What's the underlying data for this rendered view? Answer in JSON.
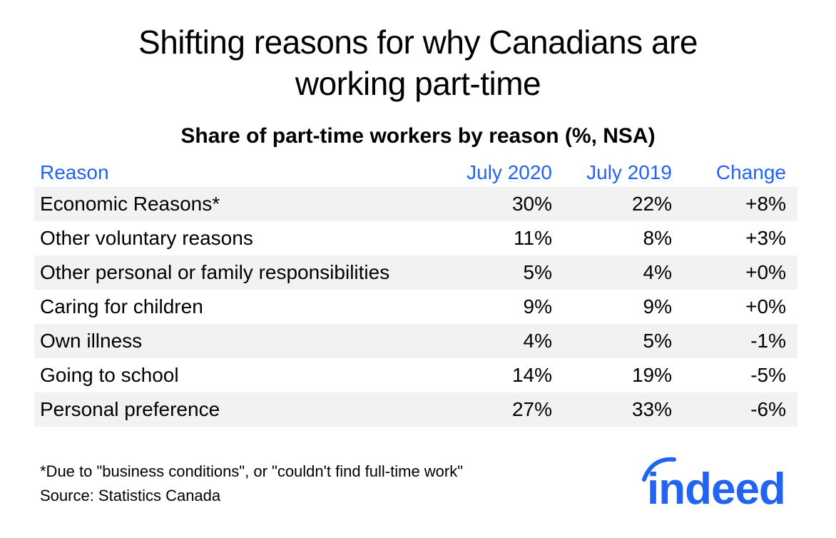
{
  "title_line1": "Shifting reasons for why Canadians are",
  "title_line2": "working part-time",
  "subtitle": "Share of part-time workers by reason (%, NSA)",
  "headers": {
    "reason": "Reason",
    "july2020": "July 2020",
    "july2019": "July 2019",
    "change": "Change"
  },
  "rows": [
    {
      "reason": "Economic Reasons*",
      "july2020": "30%",
      "july2019": "22%",
      "change": "+8%"
    },
    {
      "reason": "Other voluntary reasons",
      "july2020": "11%",
      "july2019": "8%",
      "change": "+3%"
    },
    {
      "reason": "Other personal or family responsibilities",
      "july2020": "5%",
      "july2019": "4%",
      "change": "+0%"
    },
    {
      "reason": "Caring for children",
      "july2020": "9%",
      "july2019": "9%",
      "change": "+0%"
    },
    {
      "reason": "Own illness",
      "july2020": "4%",
      "july2019": "5%",
      "change": "-1%"
    },
    {
      "reason": "Going to school",
      "july2020": "14%",
      "july2019": "19%",
      "change": "-5%"
    },
    {
      "reason": "Personal preference",
      "july2020": "27%",
      "july2019": "33%",
      "change": "-6%"
    }
  ],
  "footnote": "*Due to \"business conditions\", or \"couldn't find full-time work\"",
  "source": "Source: Statistics Canada",
  "logo_text": "indeed",
  "colors": {
    "accent": "#2164f3",
    "stripe": "#f2f2f2",
    "text": "#000000"
  },
  "chart_data": {
    "type": "table",
    "title": "Shifting reasons for why Canadians are working part-time",
    "subtitle": "Share of part-time workers by reason (%, NSA)",
    "columns": [
      "Reason",
      "July 2020",
      "July 2019",
      "Change"
    ],
    "categories": [
      "Economic Reasons*",
      "Other voluntary reasons",
      "Other personal or family responsibilities",
      "Caring for children",
      "Own illness",
      "Going to school",
      "Personal preference"
    ],
    "series": [
      {
        "name": "July 2020",
        "values": [
          30,
          11,
          5,
          9,
          4,
          14,
          27
        ]
      },
      {
        "name": "July 2019",
        "values": [
          22,
          8,
          4,
          9,
          5,
          19,
          33
        ]
      },
      {
        "name": "Change",
        "values": [
          8,
          3,
          0,
          0,
          -1,
          -5,
          -6
        ]
      }
    ],
    "unit": "%"
  }
}
